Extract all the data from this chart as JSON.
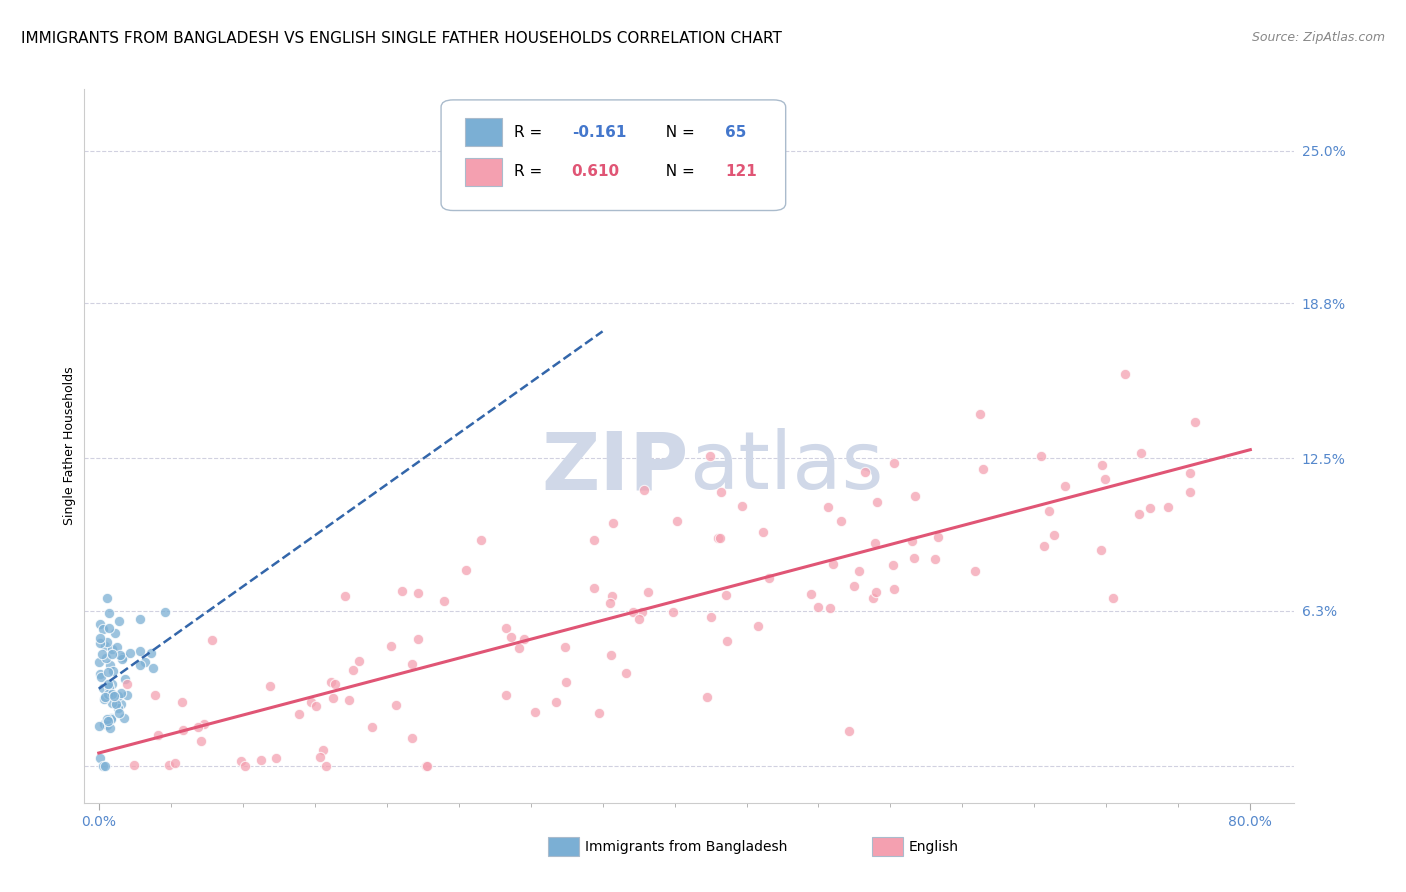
{
  "title": "IMMIGRANTS FROM BANGLADESH VS ENGLISH SINGLE FATHER HOUSEHOLDS CORRELATION CHART",
  "source": "Source: ZipAtlas.com",
  "ylabel": "Single Father Households",
  "ytick_vals": [
    0.0,
    0.063,
    0.125,
    0.188,
    0.25
  ],
  "ytick_labels": [
    "",
    "6.3%",
    "12.5%",
    "18.8%",
    "25.0%"
  ],
  "xlim": [
    -0.01,
    0.83
  ],
  "ylim": [
    -0.015,
    0.275
  ],
  "blue_color": "#7BAFD4",
  "pink_color": "#F4A0B0",
  "blue_line_color": "#3366AA",
  "pink_line_color": "#E05575",
  "background_color": "#FFFFFF",
  "grid_color": "#CCCCDD",
  "watermark_color": "#D0D8E8",
  "title_fontsize": 11,
  "axis_label_fontsize": 9,
  "tick_fontsize": 10,
  "legend_fontsize": 11,
  "source_fontsize": 9,
  "fig_width": 14.06,
  "fig_height": 8.92
}
